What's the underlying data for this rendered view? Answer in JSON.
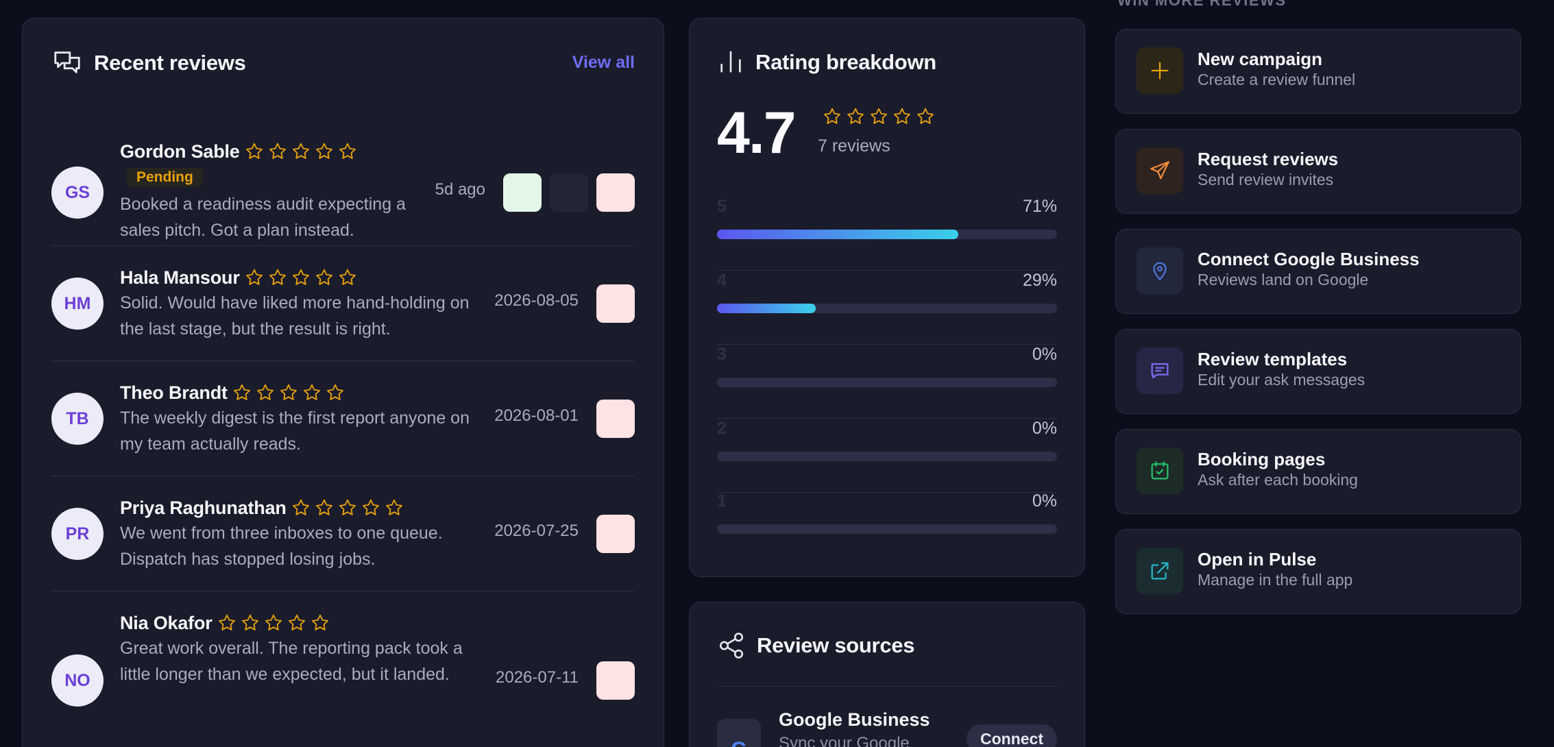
{
  "recent_reviews": {
    "title": "Recent reviews",
    "view_all": "View all",
    "items": [
      {
        "initials": "GS",
        "name": "Gordon Sable",
        "badge": "Pending",
        "text": "Booked a readiness audit expecting a sales pitch. Got a plan instead.",
        "date": "5d ago"
      },
      {
        "initials": "HM",
        "name": "Hala Mansour",
        "text": "Solid. Would have liked more hand-holding on the last stage, but the result is right.",
        "date": "2026-08-05"
      },
      {
        "initials": "TB",
        "name": "Theo Brandt",
        "text": "The weekly digest is the first report anyone on my team actually reads.",
        "date": "2026-08-01"
      },
      {
        "initials": "PR",
        "name": "Priya Raghunathan",
        "text": "We went from three inboxes to one queue. Dispatch has stopped losing jobs.",
        "date": "2026-07-25"
      },
      {
        "initials": "NO",
        "name": "Nia Okafor",
        "text": "Great work overall. The reporting pack took a little longer than we expected, but it landed.",
        "date": "2026-07-11"
      }
    ]
  },
  "rating_breakdown": {
    "title": "Rating breakdown",
    "score": "4.7",
    "count": "7 reviews",
    "rows": [
      {
        "stars": "5",
        "pct_label": "71%",
        "fraction": 0.71
      },
      {
        "stars": "4",
        "pct_label": "29%",
        "fraction": 0.29
      },
      {
        "stars": "3",
        "pct_label": "0%",
        "fraction": 0
      },
      {
        "stars": "2",
        "pct_label": "0%",
        "fraction": 0
      },
      {
        "stars": "1",
        "pct_label": "0%",
        "fraction": 0
      }
    ]
  },
  "review_sources": {
    "title": "Review sources",
    "items": [
      {
        "icon_letter": "G",
        "name": "Google Business",
        "sub": "Sync your Google",
        "button": "Connect"
      }
    ]
  },
  "win_more": {
    "label": "WIN MORE REVIEWS",
    "actions": [
      {
        "title": "New campaign",
        "sub": "Create a review funnel",
        "icon": "plus-icon"
      },
      {
        "title": "Request reviews",
        "sub": "Send review invites",
        "icon": "send-icon"
      },
      {
        "title": "Connect Google Business",
        "sub": "Reviews land on Google",
        "icon": "map-pin-icon"
      },
      {
        "title": "Review templates",
        "sub": "Edit your ask messages",
        "icon": "message-icon"
      },
      {
        "title": "Booking pages",
        "sub": "Ask after each booking",
        "icon": "calendar-check-icon"
      },
      {
        "title": "Open in Pulse",
        "sub": "Manage in the full app",
        "icon": "external-link-icon"
      }
    ]
  },
  "colors": {
    "star": "#e8a20c",
    "accent": "#6f6cf6",
    "bar_start": "#5b57ee",
    "bar_end": "#3ad0ea"
  }
}
